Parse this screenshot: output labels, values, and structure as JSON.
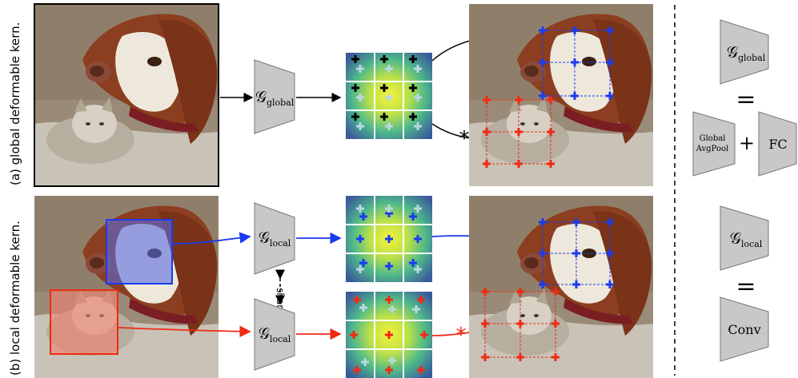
{
  "rows": {
    "a_label": "(a) global deformable kern.",
    "b_label": "(b) local deformable kern."
  },
  "modules": {
    "global": "𝒢",
    "global_sub": "global",
    "local": "𝒢",
    "local_sub": "local",
    "shared": "shared"
  },
  "legend": {
    "global_lhs": "𝒢",
    "global_lhs_sub": "global",
    "equals": "=",
    "global_pool_line1": "Global",
    "global_pool_line2": "AvgPool",
    "plus": "+",
    "fc": "FC",
    "local_lhs": "𝒢",
    "local_lhs_sub": "local",
    "conv": "Conv"
  },
  "colors": {
    "blue": "#1a3cf0",
    "red": "#f02a14",
    "gray_module": "#c8c8c8",
    "kernel_center": "#f4f03a",
    "kernel_mid": "#5cc585",
    "kernel_edge": "#3a5aa0"
  }
}
